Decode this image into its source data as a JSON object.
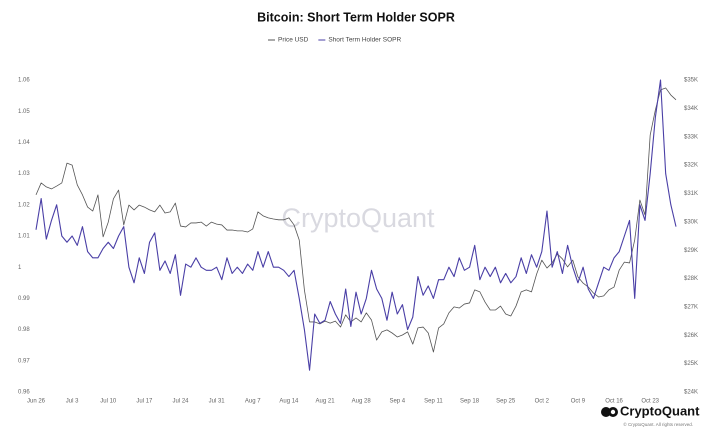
{
  "chart_data": {
    "type": "line",
    "title": "Bitcoin: Short Term Holder SOPR",
    "watermark": "CryptoQuant",
    "logo_text": "CryptoQuant",
    "copyright": "© CryptoQuant. All rights reserved.",
    "categories": [
      "Jun 26",
      null,
      null,
      null,
      null,
      null,
      null,
      "Jul 3",
      null,
      null,
      null,
      null,
      null,
      null,
      "Jul 10",
      null,
      null,
      null,
      null,
      null,
      null,
      "Jul 17",
      null,
      null,
      null,
      null,
      null,
      null,
      "Jul 24",
      null,
      null,
      null,
      null,
      null,
      null,
      "Jul 31",
      null,
      null,
      null,
      null,
      null,
      null,
      "Aug 7",
      null,
      null,
      null,
      null,
      null,
      null,
      "Aug 14",
      null,
      null,
      null,
      null,
      null,
      null,
      "Aug 21",
      null,
      null,
      null,
      null,
      null,
      null,
      "Aug 28",
      null,
      null,
      null,
      null,
      null,
      null,
      "Sep 4",
      null,
      null,
      null,
      null,
      null,
      null,
      "Sep 11",
      null,
      null,
      null,
      null,
      null,
      null,
      "Sep 18",
      null,
      null,
      null,
      null,
      null,
      null,
      "Sep 25",
      null,
      null,
      null,
      null,
      null,
      null,
      "Oct 2",
      null,
      null,
      null,
      null,
      null,
      null,
      "Oct 9",
      null,
      null,
      null,
      null,
      null,
      null,
      "Oct 16",
      null,
      null,
      null,
      null,
      null,
      null,
      "Oct 23",
      null,
      null,
      null,
      null,
      null
    ],
    "series": [
      {
        "name": "Price USD",
        "color": "#555555",
        "axis": "y2",
        "values": [
          30950,
          31370,
          31230,
          31160,
          31260,
          31370,
          32070,
          32000,
          31300,
          30950,
          30520,
          30380,
          30950,
          29470,
          29990,
          30810,
          31120,
          29890,
          30590,
          30420,
          30590,
          30520,
          30420,
          30350,
          30590,
          30310,
          30350,
          30660,
          29850,
          29820,
          29960,
          29960,
          29990,
          29850,
          29990,
          29920,
          29890,
          29710,
          29710,
          29680,
          29680,
          29640,
          29750,
          30350,
          30210,
          30140,
          30100,
          30070,
          30070,
          30140,
          29890,
          29360,
          27600,
          26470,
          26470,
          26400,
          26500,
          26430,
          26500,
          26290,
          26720,
          26470,
          26610,
          26470,
          26790,
          26540,
          25830,
          26120,
          26190,
          26080,
          25940,
          26010,
          26120,
          25690,
          26260,
          26290,
          26080,
          25410,
          26260,
          26400,
          26790,
          27000,
          26960,
          27100,
          27140,
          27600,
          27530,
          27170,
          26890,
          26890,
          27030,
          26750,
          26680,
          27030,
          27530,
          27600,
          27530,
          28160,
          28650,
          28370,
          28550,
          28870,
          28690,
          28410,
          28650,
          28060,
          27840,
          27700,
          27490,
          27350,
          27390,
          27600,
          27700,
          28300,
          28580,
          28550,
          29360,
          30770,
          30240,
          33060,
          33940,
          34650,
          34720,
          34470,
          34300
        ]
      },
      {
        "name": "Short Term Holder SOPR",
        "color": "#4a3fa6",
        "values": [
          1.012,
          1.022,
          1.009,
          1.015,
          1.02,
          1.01,
          1.008,
          1.01,
          1.007,
          1.013,
          1.005,
          1.003,
          1.003,
          1.006,
          1.008,
          1.006,
          1.01,
          1.013,
          1.0,
          0.995,
          1.003,
          0.998,
          1.008,
          1.011,
          0.999,
          1.002,
          0.998,
          1.004,
          0.991,
          1.001,
          1.0,
          1.003,
          1.0,
          0.999,
          0.999,
          1.0,
          0.996,
          1.003,
          0.998,
          1.0,
          0.998,
          1.001,
          0.999,
          1.005,
          1.0,
          1.005,
          1.0,
          1.0,
          0.999,
          0.997,
          0.999,
          0.99,
          0.98,
          0.967,
          0.985,
          0.982,
          0.983,
          0.989,
          0.985,
          0.982,
          0.993,
          0.981,
          0.992,
          0.985,
          0.99,
          0.999,
          0.993,
          0.99,
          0.983,
          0.992,
          0.985,
          0.988,
          0.98,
          0.984,
          0.997,
          0.991,
          0.994,
          0.99,
          0.996,
          0.996,
          1.0,
          0.997,
          1.003,
          0.999,
          1.0,
          1.007,
          0.996,
          1.0,
          0.997,
          1.0,
          0.995,
          0.998,
          0.995,
          0.997,
          1.003,
          0.998,
          1.004,
          1.0,
          1.005,
          1.018,
          1.0,
          1.005,
          0.998,
          1.007,
          1.0,
          0.995,
          1.0,
          0.993,
          0.99,
          0.995,
          1.0,
          0.999,
          1.003,
          1.005,
          1.01,
          1.015,
          0.99,
          1.02,
          1.015,
          1.03,
          1.048,
          1.06,
          1.03,
          1.02,
          1.013
        ]
      }
    ],
    "ylim": [
      0.96,
      1.06
    ],
    "yticks": [
      0.96,
      0.97,
      0.98,
      0.99,
      1,
      1.01,
      1.02,
      1.03,
      1.04,
      1.05,
      1.06
    ],
    "y2lim": [
      24000,
      35000
    ],
    "y2ticks": [
      {
        "value": 24000,
        "label": "$24K"
      },
      {
        "value": 25000,
        "label": "$25K"
      },
      {
        "value": 26000,
        "label": "$26K"
      },
      {
        "value": 27000,
        "label": "$27K"
      },
      {
        "value": 28000,
        "label": "$28K"
      },
      {
        "value": 29000,
        "label": "$29K"
      },
      {
        "value": 30000,
        "label": "$30K"
      },
      {
        "value": 31000,
        "label": "$31K"
      },
      {
        "value": 32000,
        "label": "$32K"
      },
      {
        "value": 33000,
        "label": "$33K"
      },
      {
        "value": 34000,
        "label": "$34K"
      },
      {
        "value": 35000,
        "label": "$35K"
      }
    ],
    "grid": false
  }
}
